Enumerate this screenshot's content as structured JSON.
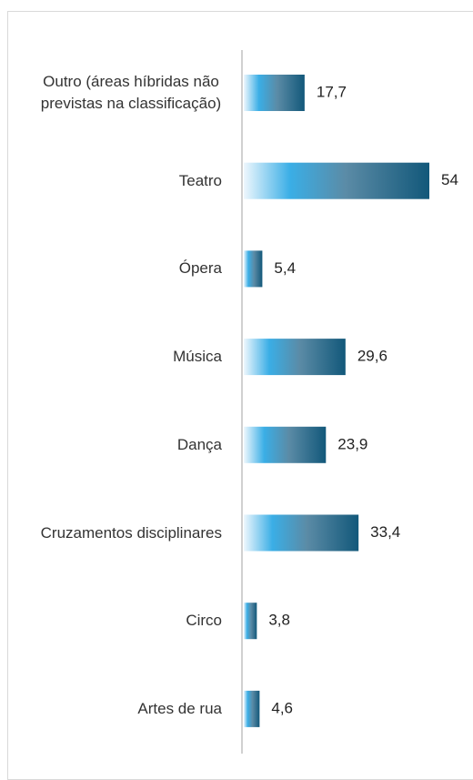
{
  "chart_data": {
    "type": "bar",
    "orientation": "horizontal",
    "categories": [
      "Outro (áreas híbridas não previstas na classificação)",
      "Teatro",
      "Ópera",
      "Música",
      "Dança",
      "Cruzamentos disciplinares",
      "Circo",
      "Artes de rua"
    ],
    "values": [
      17.7,
      54,
      5.4,
      29.6,
      23.9,
      33.4,
      3.8,
      4.6
    ],
    "value_labels": [
      "17,7",
      "54",
      "5,4",
      "29,6",
      "23,9",
      "33,4",
      "3,8",
      "4,6"
    ],
    "gradient": [
      "#eef7fd",
      "#3aaee6",
      "#5b8ba6",
      "#12587a"
    ]
  }
}
